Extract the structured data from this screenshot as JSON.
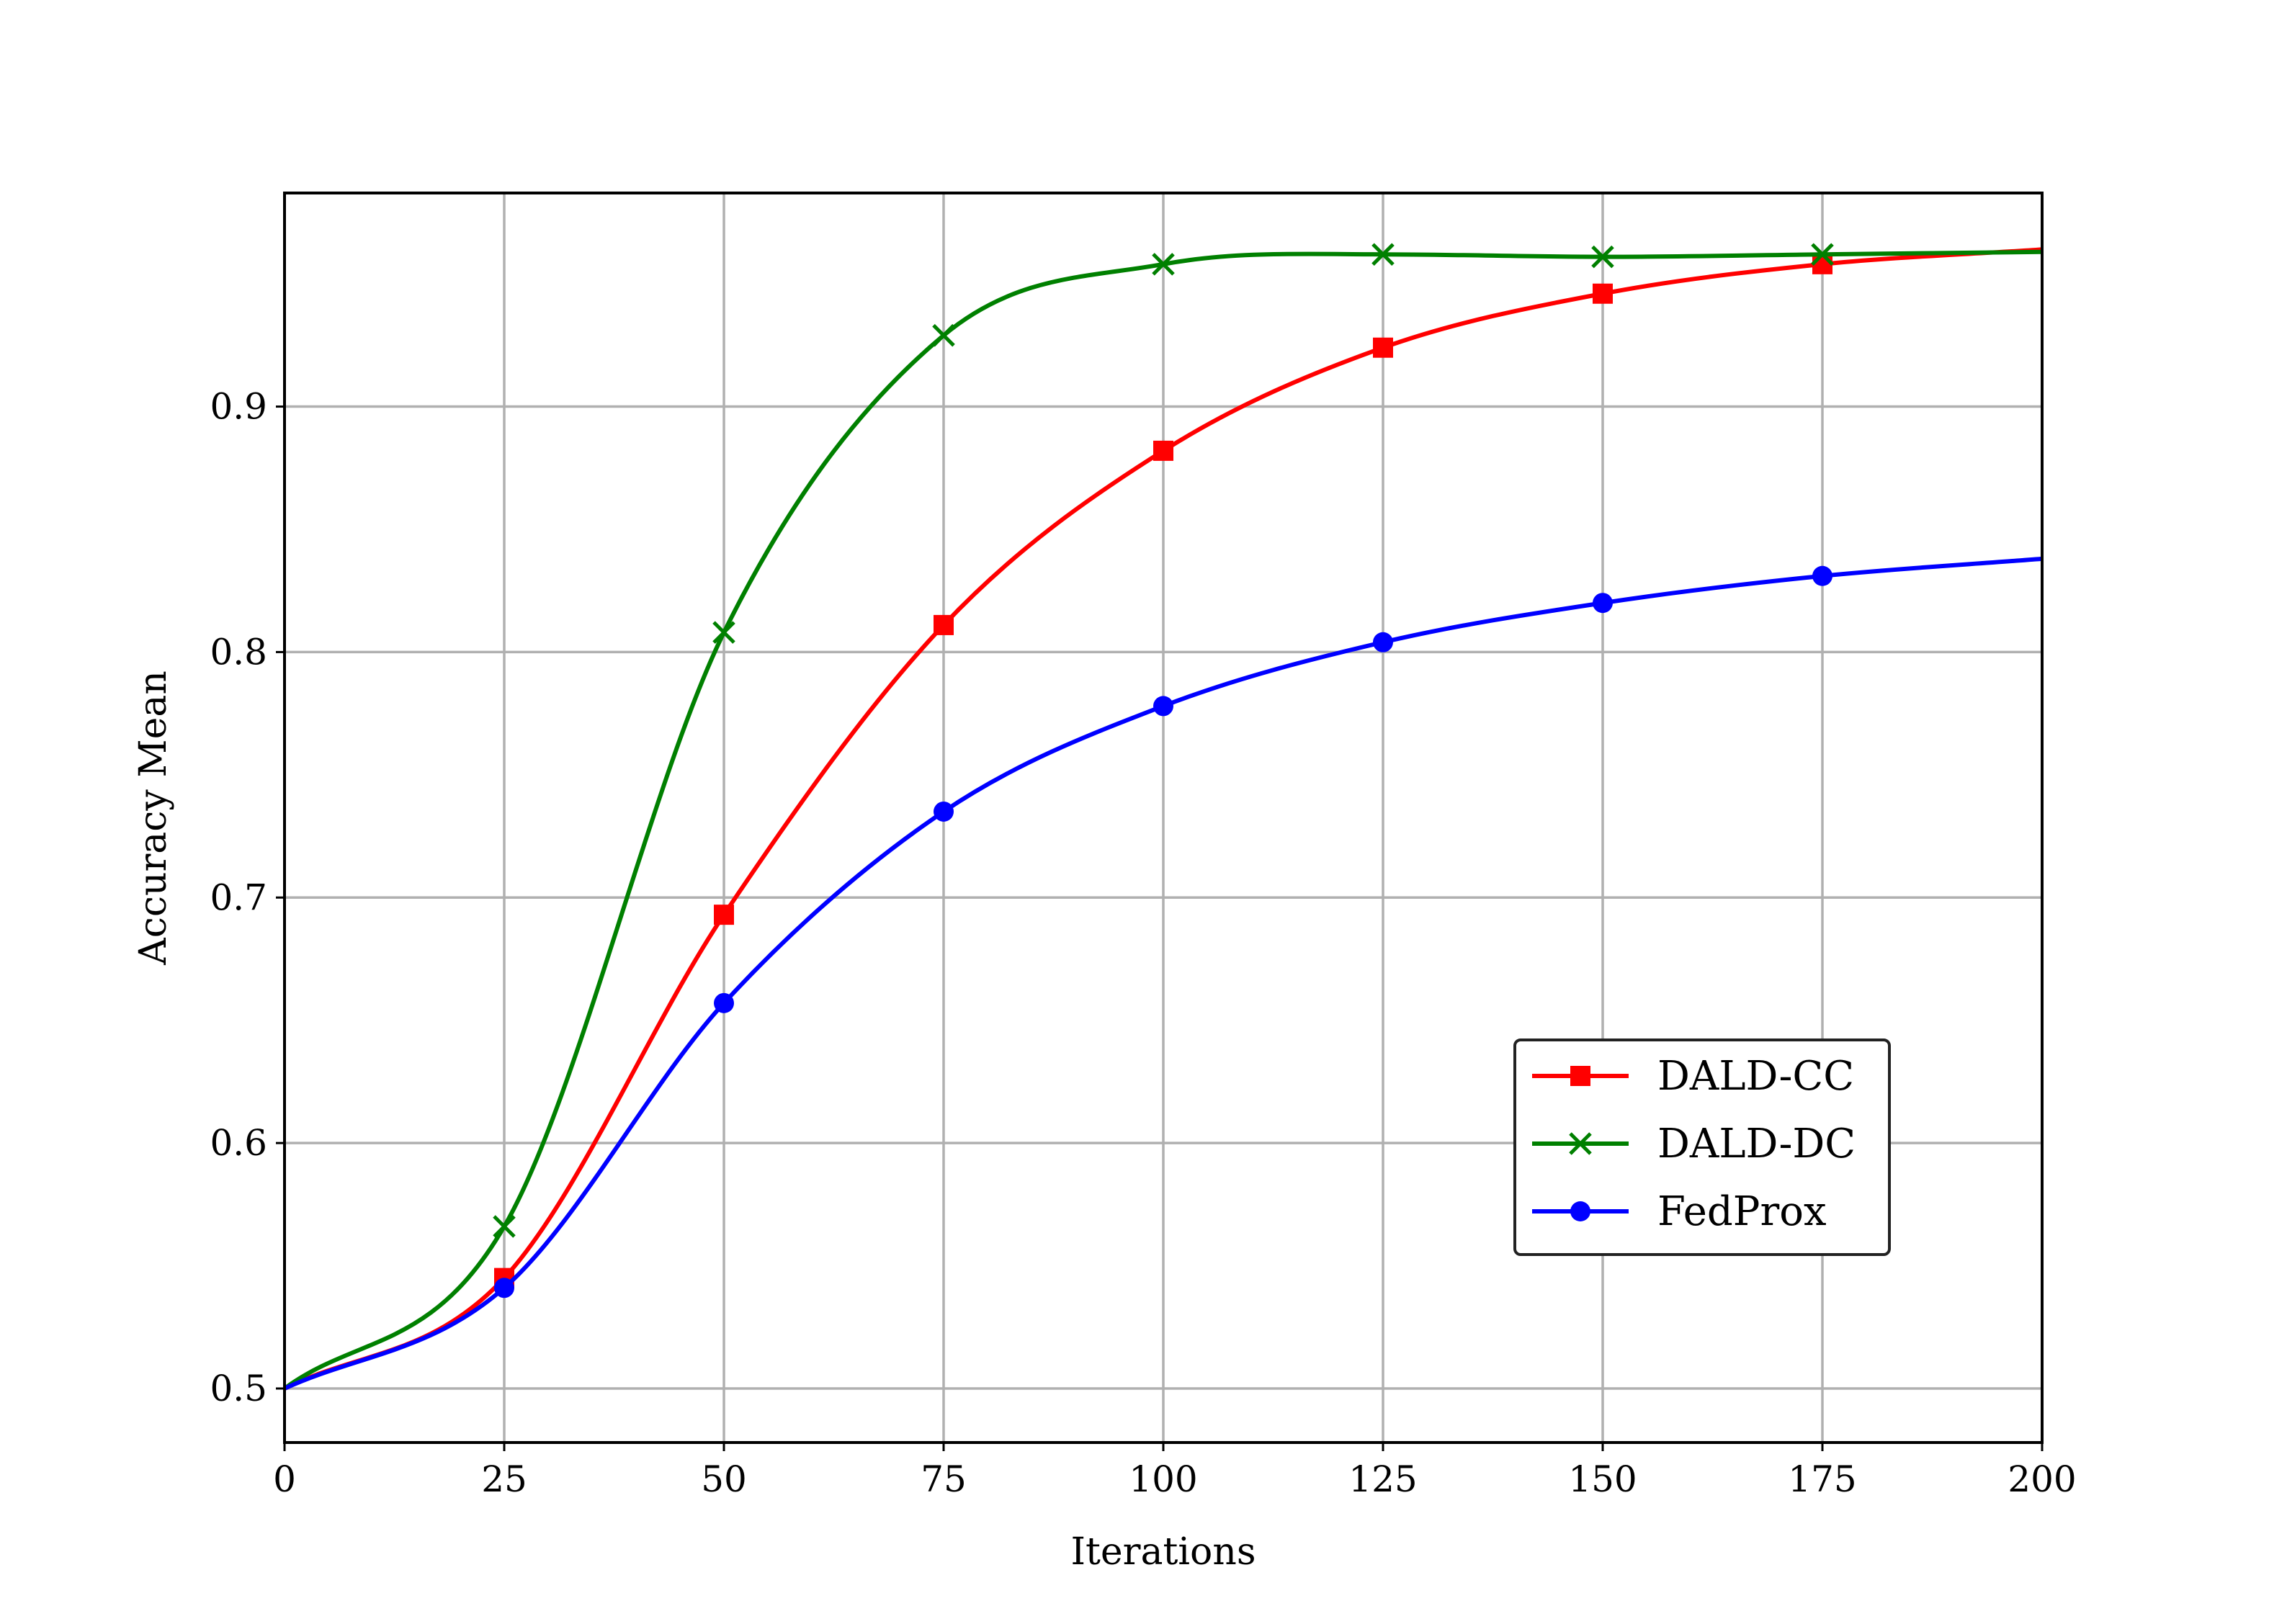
{
  "chart_data": {
    "type": "line",
    "title": "",
    "xlabel": "Iterations",
    "ylabel": "Accuracy Mean",
    "xlim": [
      0,
      200
    ],
    "ylim": [
      0.478,
      0.987
    ],
    "xticks": [
      0,
      25,
      50,
      75,
      100,
      125,
      150,
      175,
      200
    ],
    "xtick_labels": [
      "0",
      "25",
      "50",
      "75",
      "100",
      "125",
      "150",
      "175",
      "200"
    ],
    "yticks": [
      0.5,
      0.6,
      0.7,
      0.8,
      0.9
    ],
    "ytick_labels": [
      "0.5",
      "0.6",
      "0.7",
      "0.8",
      "0.9"
    ],
    "grid": true,
    "legend_position": "lower-right",
    "series": [
      {
        "name": "DALD-CC",
        "color": "#ff0000",
        "marker": "square",
        "x": [
          0,
          25,
          50,
          75,
          100,
          125,
          150,
          175,
          200
        ],
        "y": [
          0.5,
          0.545,
          0.693,
          0.811,
          0.882,
          0.924,
          0.946,
          0.958,
          0.964
        ]
      },
      {
        "name": "DALD-DC",
        "color": "#008000",
        "marker": "x",
        "x": [
          0,
          25,
          50,
          75,
          100,
          125,
          150,
          175,
          200
        ],
        "y": [
          0.5,
          0.566,
          0.808,
          0.929,
          0.958,
          0.962,
          0.961,
          0.962,
          0.963
        ]
      },
      {
        "name": "FedProx",
        "color": "#0000ff",
        "marker": "circle",
        "x": [
          0,
          25,
          50,
          75,
          100,
          125,
          150,
          175,
          200
        ],
        "y": [
          0.5,
          0.541,
          0.657,
          0.735,
          0.778,
          0.804,
          0.82,
          0.831,
          0.838
        ]
      }
    ]
  }
}
